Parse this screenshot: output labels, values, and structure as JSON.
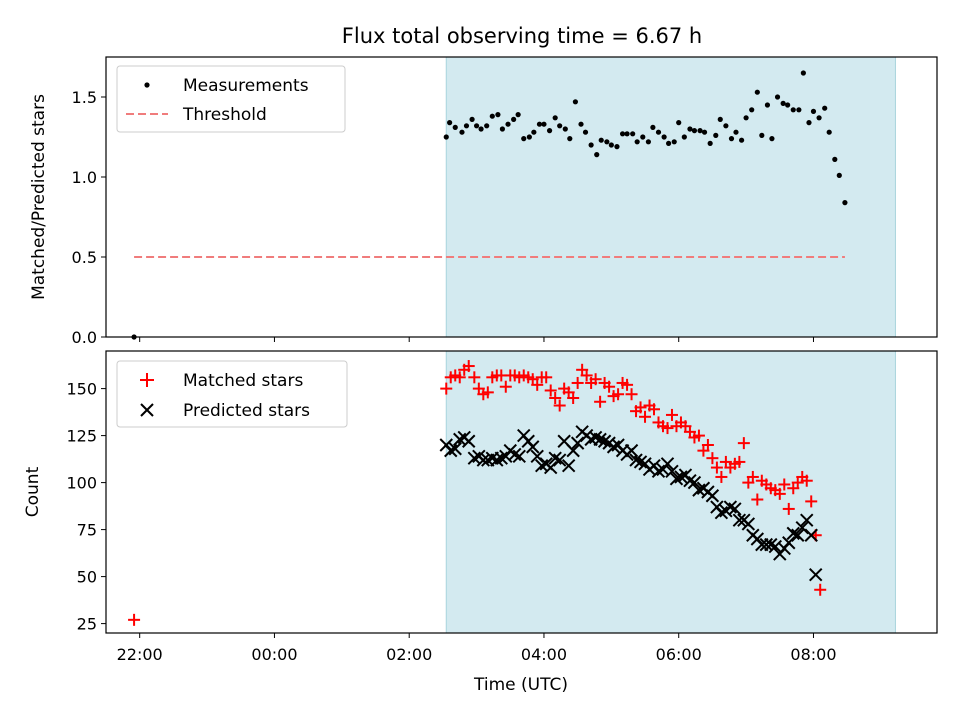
{
  "chart_data": [
    {
      "type": "scatter",
      "title": "Flux total observing time = 6.67 h",
      "xlabel": "",
      "ylabel": "Matched/Predicted stars",
      "xlim": [
        "21:30",
        "09:50"
      ],
      "ylim": [
        0.0,
        1.75
      ],
      "yticks": [
        0.0,
        0.5,
        1.0,
        1.5
      ],
      "ytick_labels": [
        "0.0",
        "0.5",
        "1.0",
        "1.5"
      ],
      "shaded_interval": [
        "02:33",
        "09:13"
      ],
      "shade_color": "#d3eaf0",
      "legend_position": "upper left",
      "series": [
        {
          "name": "Measurements",
          "marker": "dot",
          "color": "#000000",
          "points": [
            [
              "21:55",
              0.0
            ],
            [
              "02:33",
              1.25
            ],
            [
              "02:36",
              1.34
            ],
            [
              "02:41",
              1.31
            ],
            [
              "02:47",
              1.28
            ],
            [
              "02:51",
              1.32
            ],
            [
              "02:56",
              1.36
            ],
            [
              "03:00",
              1.32
            ],
            [
              "03:04",
              1.3
            ],
            [
              "03:09",
              1.32
            ],
            [
              "03:14",
              1.38
            ],
            [
              "03:19",
              1.39
            ],
            [
              "03:23",
              1.3
            ],
            [
              "03:28",
              1.33
            ],
            [
              "03:33",
              1.36
            ],
            [
              "03:37",
              1.39
            ],
            [
              "03:42",
              1.24
            ],
            [
              "03:47",
              1.25
            ],
            [
              "03:51",
              1.28
            ],
            [
              "03:56",
              1.33
            ],
            [
              "04:00",
              1.33
            ],
            [
              "04:05",
              1.29
            ],
            [
              "04:10",
              1.37
            ],
            [
              "04:14",
              1.32
            ],
            [
              "04:19",
              1.3
            ],
            [
              "04:23",
              1.24
            ],
            [
              "04:28",
              1.47
            ],
            [
              "04:33",
              1.33
            ],
            [
              "04:37",
              1.28
            ],
            [
              "04:42",
              1.2
            ],
            [
              "04:47",
              1.14
            ],
            [
              "04:51",
              1.23
            ],
            [
              "04:56",
              1.22
            ],
            [
              "05:00",
              1.2
            ],
            [
              "05:05",
              1.19
            ],
            [
              "05:10",
              1.27
            ],
            [
              "05:14",
              1.27
            ],
            [
              "05:19",
              1.27
            ],
            [
              "05:23",
              1.22
            ],
            [
              "05:28",
              1.25
            ],
            [
              "05:33",
              1.22
            ],
            [
              "05:37",
              1.31
            ],
            [
              "05:42",
              1.28
            ],
            [
              "05:47",
              1.25
            ],
            [
              "05:51",
              1.21
            ],
            [
              "05:56",
              1.22
            ],
            [
              "06:00",
              1.34
            ],
            [
              "06:05",
              1.25
            ],
            [
              "06:10",
              1.3
            ],
            [
              "06:14",
              1.29
            ],
            [
              "06:19",
              1.29
            ],
            [
              "06:23",
              1.28
            ],
            [
              "06:28",
              1.21
            ],
            [
              "06:33",
              1.26
            ],
            [
              "06:37",
              1.36
            ],
            [
              "06:42",
              1.32
            ],
            [
              "06:47",
              1.24
            ],
            [
              "06:51",
              1.28
            ],
            [
              "06:56",
              1.23
            ],
            [
              "07:00",
              1.37
            ],
            [
              "07:05",
              1.42
            ],
            [
              "07:10",
              1.53
            ],
            [
              "07:14",
              1.26
            ],
            [
              "07:19",
              1.45
            ],
            [
              "07:23",
              1.24
            ],
            [
              "07:28",
              1.5
            ],
            [
              "07:33",
              1.46
            ],
            [
              "07:37",
              1.45
            ],
            [
              "07:42",
              1.42
            ],
            [
              "07:47",
              1.42
            ],
            [
              "07:51",
              1.65
            ],
            [
              "07:56",
              1.34
            ],
            [
              "08:00",
              1.41
            ],
            [
              "08:05",
              1.37
            ],
            [
              "08:10",
              1.43
            ],
            [
              "08:14",
              1.28
            ],
            [
              "08:19",
              1.11
            ],
            [
              "08:23",
              1.01
            ],
            [
              "08:28",
              0.84
            ]
          ]
        },
        {
          "name": "Threshold",
          "marker": "dashed-line",
          "color": "#f07c7c",
          "points": [
            [
              "21:55",
              0.5
            ],
            [
              "08:28",
              0.5
            ]
          ]
        }
      ]
    },
    {
      "type": "scatter",
      "title": "",
      "xlabel": "Time (UTC)",
      "ylabel": "Count",
      "xlim": [
        "21:30",
        "09:50"
      ],
      "ylim": [
        20,
        170
      ],
      "yticks": [
        25,
        50,
        75,
        100,
        125,
        150
      ],
      "ytick_labels": [
        "25",
        "50",
        "75",
        "100",
        "125",
        "150"
      ],
      "xtick_labels": [
        "22:00",
        "00:00",
        "02:00",
        "04:00",
        "06:00",
        "08:00"
      ],
      "shaded_interval": [
        "02:33",
        "09:13"
      ],
      "shade_color": "#d3eaf0",
      "legend_position": "upper left",
      "series": [
        {
          "name": "Matched stars",
          "marker": "plus",
          "color": "#ff0000",
          "points": [
            [
              "21:55",
              27
            ],
            [
              "02:33",
              150
            ],
            [
              "02:37",
              156
            ],
            [
              "02:41",
              157
            ],
            [
              "02:45",
              156
            ],
            [
              "02:49",
              160
            ],
            [
              "02:53",
              162
            ],
            [
              "02:58",
              156
            ],
            [
              "03:02",
              150
            ],
            [
              "03:06",
              147
            ],
            [
              "03:10",
              148
            ],
            [
              "03:14",
              156
            ],
            [
              "03:18",
              157
            ],
            [
              "03:22",
              157
            ],
            [
              "03:26",
              151
            ],
            [
              "03:30",
              157
            ],
            [
              "03:34",
              157
            ],
            [
              "03:38",
              156
            ],
            [
              "03:42",
              157
            ],
            [
              "03:46",
              156
            ],
            [
              "03:50",
              155
            ],
            [
              "03:54",
              152
            ],
            [
              "03:58",
              156
            ],
            [
              "04:02",
              156
            ],
            [
              "04:06",
              149
            ],
            [
              "04:10",
              145
            ],
            [
              "04:14",
              141
            ],
            [
              "04:18",
              150
            ],
            [
              "04:22",
              148
            ],
            [
              "04:26",
              145
            ],
            [
              "04:30",
              153
            ],
            [
              "04:34",
              160
            ],
            [
              "04:38",
              157
            ],
            [
              "04:42",
              153
            ],
            [
              "04:46",
              155
            ],
            [
              "04:50",
              143
            ],
            [
              "04:54",
              153
            ],
            [
              "04:58",
              151
            ],
            [
              "05:02",
              146
            ],
            [
              "05:06",
              147
            ],
            [
              "05:10",
              153
            ],
            [
              "05:14",
              152
            ],
            [
              "05:18",
              147
            ],
            [
              "05:22",
              138
            ],
            [
              "05:26",
              140
            ],
            [
              "05:30",
              135
            ],
            [
              "05:34",
              141
            ],
            [
              "05:38",
              139
            ],
            [
              "05:42",
              132
            ],
            [
              "05:46",
              130
            ],
            [
              "05:50",
              129
            ],
            [
              "05:54",
              136
            ],
            [
              "05:58",
              130
            ],
            [
              "06:02",
              132
            ],
            [
              "06:06",
              130
            ],
            [
              "06:10",
              127
            ],
            [
              "06:14",
              124
            ],
            [
              "06:18",
              125
            ],
            [
              "06:22",
              117
            ],
            [
              "06:26",
              120
            ],
            [
              "06:30",
              113
            ],
            [
              "06:34",
              108
            ],
            [
              "06:38",
              103
            ],
            [
              "06:42",
              111
            ],
            [
              "06:46",
              108
            ],
            [
              "06:50",
              110
            ],
            [
              "06:54",
              111
            ],
            [
              "06:58",
              121
            ],
            [
              "07:02",
              100
            ],
            [
              "07:06",
              103
            ],
            [
              "07:10",
              91
            ],
            [
              "07:14",
              101
            ],
            [
              "07:18",
              99
            ],
            [
              "07:22",
              97
            ],
            [
              "07:26",
              96
            ],
            [
              "07:30",
              94
            ],
            [
              "07:34",
              99
            ],
            [
              "07:38",
              86
            ],
            [
              "07:42",
              97
            ],
            [
              "07:46",
              100
            ],
            [
              "07:50",
              103
            ],
            [
              "07:54",
              101
            ],
            [
              "07:58",
              90
            ],
            [
              "08:02",
              72
            ],
            [
              "08:06",
              43
            ]
          ]
        },
        {
          "name": "Predicted stars",
          "marker": "x",
          "color": "#000000",
          "points": [
            [
              "02:33",
              120
            ],
            [
              "02:37",
              117
            ],
            [
              "02:41",
              118
            ],
            [
              "02:45",
              123
            ],
            [
              "02:49",
              124
            ],
            [
              "02:53",
              122
            ],
            [
              "02:58",
              113
            ],
            [
              "03:02",
              114
            ],
            [
              "03:06",
              112
            ],
            [
              "03:10",
              112
            ],
            [
              "03:14",
              113
            ],
            [
              "03:18",
              112
            ],
            [
              "03:22",
              113
            ],
            [
              "03:26",
              114
            ],
            [
              "03:30",
              117
            ],
            [
              "03:34",
              115
            ],
            [
              "03:38",
              114
            ],
            [
              "03:42",
              125
            ],
            [
              "03:46",
              122
            ],
            [
              "03:50",
              119
            ],
            [
              "03:54",
              114
            ],
            [
              "03:58",
              109
            ],
            [
              "04:02",
              110
            ],
            [
              "04:06",
              108
            ],
            [
              "04:10",
              113
            ],
            [
              "04:14",
              112
            ],
            [
              "04:18",
              122
            ],
            [
              "04:22",
              109
            ],
            [
              "04:26",
              117
            ],
            [
              "04:30",
              121
            ],
            [
              "04:34",
              127
            ],
            [
              "04:38",
              125
            ],
            [
              "04:42",
              123
            ],
            [
              "04:46",
              124
            ],
            [
              "04:50",
              123
            ],
            [
              "04:54",
              122
            ],
            [
              "04:58",
              121
            ],
            [
              "05:02",
              119
            ],
            [
              "05:06",
              120
            ],
            [
              "05:10",
              117
            ],
            [
              "05:14",
              115
            ],
            [
              "05:18",
              117
            ],
            [
              "05:22",
              112
            ],
            [
              "05:26",
              111
            ],
            [
              "05:30",
              110
            ],
            [
              "05:34",
              107
            ],
            [
              "05:38",
              109
            ],
            [
              "05:42",
              106
            ],
            [
              "05:46",
              107
            ],
            [
              "05:50",
              110
            ],
            [
              "05:54",
              106
            ],
            [
              "05:58",
              102
            ],
            [
              "06:02",
              103
            ],
            [
              "06:06",
              104
            ],
            [
              "06:10",
              101
            ],
            [
              "06:14",
              100
            ],
            [
              "06:18",
              96
            ],
            [
              "06:22",
              97
            ],
            [
              "06:26",
              95
            ],
            [
              "06:30",
              93
            ],
            [
              "06:34",
              87
            ],
            [
              "06:38",
              84
            ],
            [
              "06:42",
              85
            ],
            [
              "06:46",
              87
            ],
            [
              "06:50",
              86
            ],
            [
              "06:54",
              80
            ],
            [
              "06:58",
              80
            ],
            [
              "07:02",
              78
            ],
            [
              "07:06",
              72
            ],
            [
              "07:10",
              70
            ],
            [
              "07:14",
              67
            ],
            [
              "07:18",
              67
            ],
            [
              "07:22",
              67
            ],
            [
              "07:26",
              66
            ],
            [
              "07:30",
              62
            ],
            [
              "07:34",
              65
            ],
            [
              "07:38",
              68
            ],
            [
              "07:42",
              73
            ],
            [
              "07:46",
              72
            ],
            [
              "07:50",
              76
            ],
            [
              "07:54",
              80
            ],
            [
              "07:58",
              72
            ],
            [
              "08:02",
              51
            ]
          ]
        }
      ]
    }
  ]
}
